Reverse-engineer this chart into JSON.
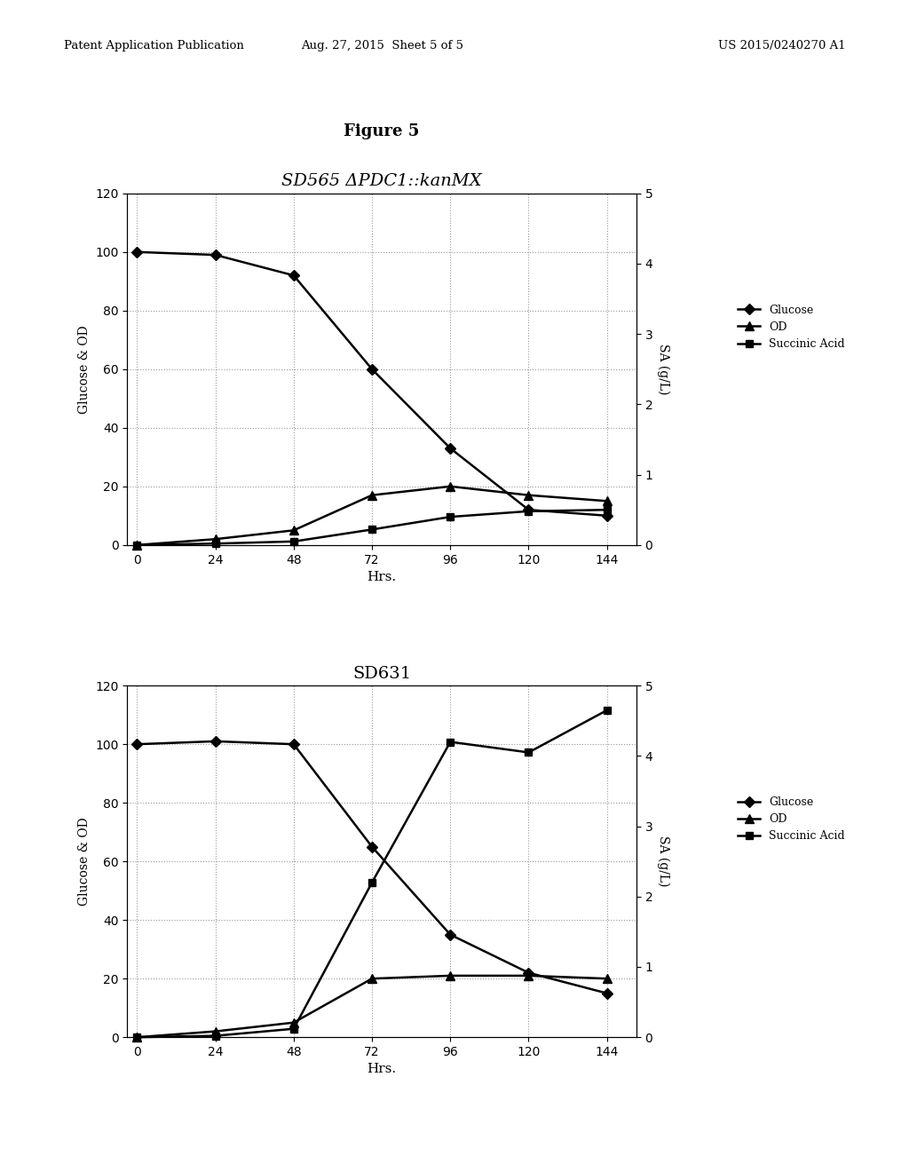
{
  "figure_title": "Figure 5",
  "chart1": {
    "title": "SD565 ΔPDC1::kanMX",
    "title_style": "italic",
    "hrs": [
      0,
      24,
      48,
      72,
      96,
      120,
      144
    ],
    "glucose": [
      100,
      99,
      92,
      60,
      33,
      12,
      10
    ],
    "od": [
      0,
      2,
      5,
      17,
      20,
      17,
      15
    ],
    "succinic_acid": [
      0.0,
      0.02,
      0.05,
      0.22,
      0.4,
      0.48,
      0.5
    ],
    "ylim_left": [
      0,
      120
    ],
    "ylim_right": [
      0,
      5
    ],
    "yticks_left": [
      0,
      20,
      40,
      60,
      80,
      100,
      120
    ],
    "yticks_right": [
      0,
      1,
      2,
      3,
      4,
      5
    ],
    "xlabel": "Hrs.",
    "ylabel_left": "Glucose & OD",
    "ylabel_right": "SA (g/L)"
  },
  "chart2": {
    "title": "SD631",
    "title_style": "normal",
    "hrs": [
      0,
      24,
      48,
      72,
      96,
      120,
      144
    ],
    "glucose": [
      100,
      101,
      100,
      65,
      35,
      22,
      15
    ],
    "od": [
      0,
      2,
      5,
      20,
      21,
      21,
      20
    ],
    "succinic_acid": [
      0.0,
      0.02,
      0.12,
      2.2,
      4.2,
      4.05,
      4.65
    ],
    "ylim_left": [
      0,
      120
    ],
    "ylim_right": [
      0,
      5
    ],
    "yticks_left": [
      0,
      20,
      40,
      60,
      80,
      100,
      120
    ],
    "yticks_right": [
      0,
      1,
      2,
      3,
      4,
      5
    ],
    "xlabel": "Hrs.",
    "ylabel_left": "Glucose & OD",
    "ylabel_right": "SA (g/L)"
  },
  "legend_labels": [
    "Glucose",
    "OD",
    "Succinic Acid"
  ],
  "line_color": "#000000",
  "marker_size": 6,
  "grid_style": "dotted",
  "grid_color": "#999999",
  "bg_color": "#ffffff",
  "header_left": "Patent Application Publication",
  "header_mid": "Aug. 27, 2015  Sheet 5 of 5",
  "header_right": "US 2015/0240270 A1"
}
